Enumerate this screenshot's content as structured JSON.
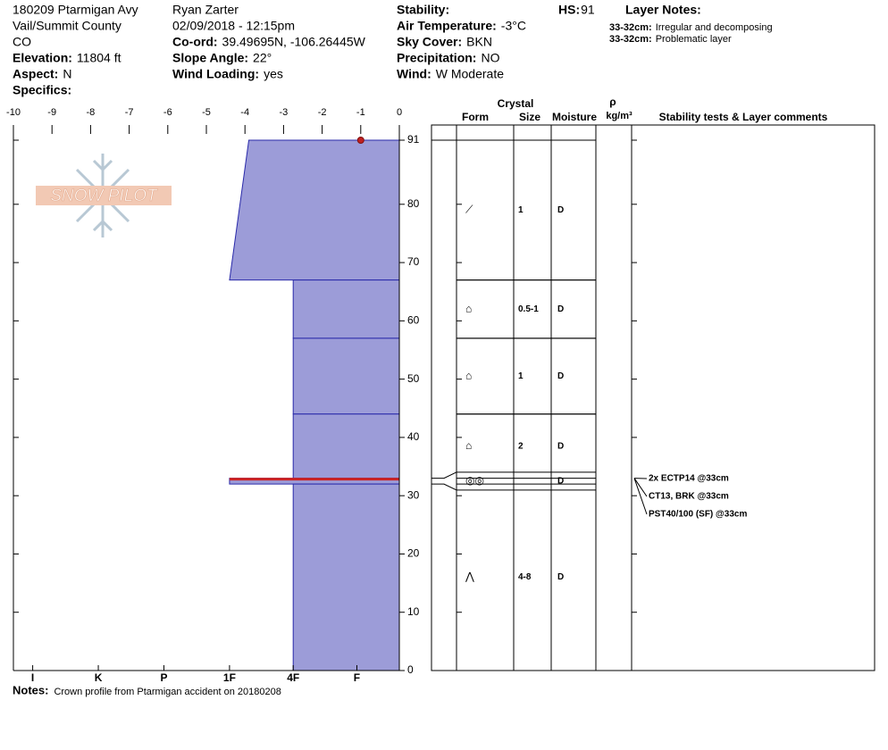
{
  "header": {
    "columns": [
      [
        {
          "text": "180209 Ptarmigan Avy"
        },
        {
          "text": "Vail/Summit County"
        },
        {
          "text": "CO"
        },
        {
          "label": "Elevation:",
          "value": "11804 ft"
        },
        {
          "label": "Aspect:",
          "value": "N"
        },
        {
          "label": "Specifics:"
        }
      ],
      [
        {
          "text": "Ryan Zarter"
        },
        {
          "text": "02/09/2018 - 12:15pm"
        },
        {
          "label": "Co-ord:",
          "value": "39.49695N, -106.26445W"
        },
        {
          "label": "Slope Angle:",
          "value": "22°"
        },
        {
          "label": "Wind Loading:",
          "value": "yes"
        }
      ],
      [
        {
          "label": "Stability:"
        },
        {
          "label": "Air Temperature:",
          "value": "-3°C"
        },
        {
          "label": "Sky Cover:",
          "value": "BKN"
        },
        {
          "label": "Precipitation:",
          "value": "NO"
        },
        {
          "label": "Wind:",
          "value": "W Moderate"
        }
      ],
      [
        {
          "label": "HS:",
          "value": "91"
        }
      ]
    ]
  },
  "layer_notes": {
    "title": "Layer Notes:",
    "notes": [
      {
        "depth": "33-32cm:",
        "text": "Irregular and decomposing"
      },
      {
        "depth": "33-32cm:",
        "text": "Problematic layer"
      }
    ]
  },
  "logo": "SNOW PILOT",
  "profile": {
    "xlim": [
      -10,
      0
    ],
    "xticks": [
      -10,
      -9,
      -8,
      -7,
      -6,
      -5,
      -4,
      -3,
      -2,
      -1,
      0
    ],
    "ylim": [
      0,
      91
    ],
    "yticks": [
      0,
      10,
      20,
      30,
      40,
      50,
      60,
      70,
      80,
      91
    ],
    "hardness_ticks": [
      {
        "value": -9.5,
        "label": "I"
      },
      {
        "value": -7.8,
        "label": "K"
      },
      {
        "value": -6.1,
        "label": "P"
      },
      {
        "value": -4.4,
        "label": "1F"
      },
      {
        "value": -2.75,
        "label": "4F"
      },
      {
        "value": -1.1,
        "label": "F"
      }
    ],
    "color": "#9c9cd8",
    "edge_color": "#2a2aaa",
    "weak_color": "#cc2222",
    "layers": [
      {
        "top": 91,
        "bottom": 67,
        "hardness_top": -3.9,
        "hardness_bottom": -4.4
      },
      {
        "top": 67,
        "bottom": 57,
        "hardness_top": -2.75,
        "hardness_bottom": -2.75
      },
      {
        "top": 57,
        "bottom": 44,
        "hardness_top": -2.75,
        "hardness_bottom": -2.75
      },
      {
        "top": 44,
        "bottom": 33,
        "hardness_top": -2.75,
        "hardness_bottom": -2.75
      },
      {
        "top": 33,
        "bottom": 32,
        "hardness_top": -4.4,
        "hardness_bottom": -4.4,
        "weak": true
      },
      {
        "top": 32,
        "bottom": 0,
        "hardness_top": -2.75,
        "hardness_bottom": -2.75
      }
    ],
    "marker": {
      "hardness": -1,
      "depth": 91
    }
  },
  "table": {
    "group": "Crystal",
    "density_symbol": "ρ",
    "columns": [
      "Form",
      "Size",
      "Moisture",
      "kg/m³",
      "Stability tests & Layer comments"
    ],
    "rows": [
      {
        "form": "⟋",
        "size": "1",
        "moisture": "D"
      },
      {
        "form": "⌂",
        "size": "0.5-1",
        "moisture": "D"
      },
      {
        "form": "⌂",
        "size": "1",
        "moisture": "D"
      },
      {
        "form": "⌂",
        "size": "2",
        "moisture": "D"
      },
      {
        "form": "◎◎",
        "size": "",
        "moisture": "D"
      },
      {
        "form": "⋀",
        "size": "4-8",
        "moisture": "D"
      }
    ],
    "stability_tests": [
      "2x ECTP14 @33cm",
      "CT13, BRK @33cm",
      "PST40/100 (SF) @33cm"
    ]
  },
  "notes": {
    "label": "Notes:",
    "text": "Crown profile from Ptarmigan accident on 20180208"
  }
}
